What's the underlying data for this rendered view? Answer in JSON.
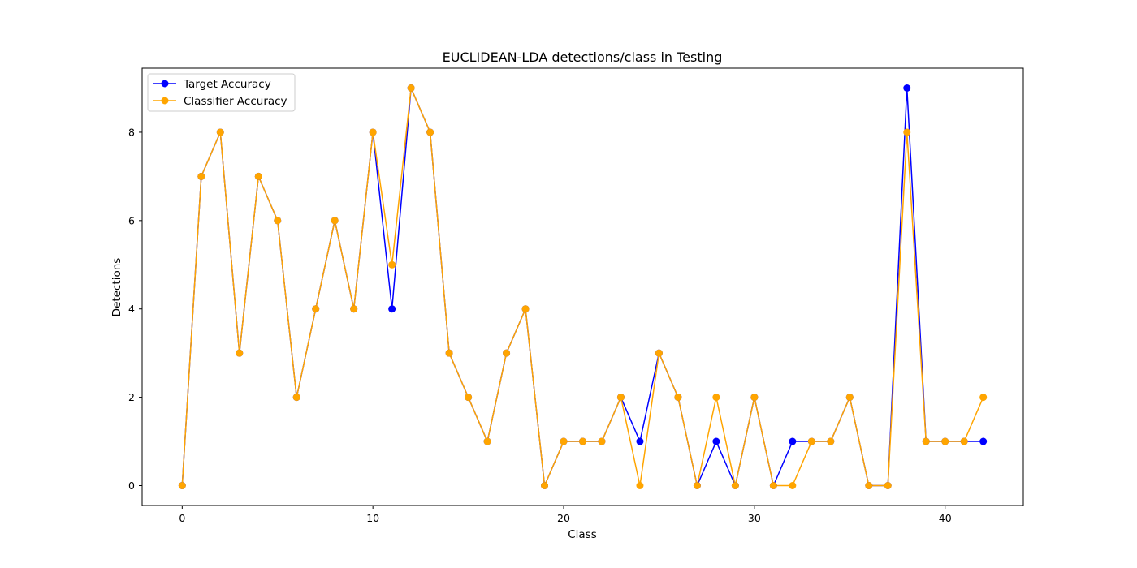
{
  "chart_data": {
    "type": "line",
    "title": "EUCLIDEAN-LDA detections/class in Testing",
    "xlabel": "Class",
    "ylabel": "Detections",
    "xlim": [
      -2.1,
      44.1
    ],
    "ylim": [
      -0.45,
      9.45
    ],
    "xticks": [
      0,
      10,
      20,
      30,
      40
    ],
    "yticks": [
      0,
      2,
      4,
      6,
      8
    ],
    "grid": false,
    "legend_position": "top-left",
    "x": [
      0,
      1,
      2,
      3,
      4,
      5,
      6,
      7,
      8,
      9,
      10,
      11,
      12,
      13,
      14,
      15,
      16,
      17,
      18,
      19,
      20,
      21,
      22,
      23,
      24,
      25,
      26,
      27,
      28,
      29,
      30,
      31,
      32,
      33,
      34,
      35,
      36,
      37,
      38,
      39,
      40,
      41,
      42
    ],
    "series": [
      {
        "name": "Target Accuracy",
        "color": "#0000ff",
        "values": [
          0,
          7,
          8,
          3,
          7,
          6,
          2,
          4,
          6,
          4,
          8,
          4,
          9,
          8,
          3,
          2,
          1,
          3,
          4,
          0,
          1,
          1,
          1,
          2,
          1,
          3,
          2,
          0,
          1,
          0,
          2,
          0,
          1,
          1,
          1,
          2,
          0,
          0,
          9,
          1,
          1,
          1,
          1
        ]
      },
      {
        "name": "Classifier Accuracy",
        "color": "#ffa500",
        "values": [
          0,
          7,
          8,
          3,
          7,
          6,
          2,
          4,
          6,
          4,
          8,
          5,
          9,
          8,
          3,
          2,
          1,
          3,
          4,
          0,
          1,
          1,
          1,
          2,
          0,
          3,
          2,
          0,
          2,
          0,
          2,
          0,
          0,
          1,
          1,
          2,
          0,
          0,
          8,
          1,
          1,
          1,
          2
        ]
      }
    ]
  }
}
